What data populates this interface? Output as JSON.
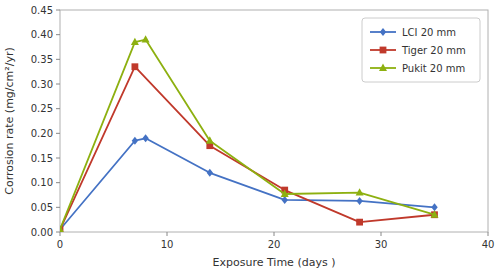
{
  "chart_data": {
    "type": "line",
    "x_label": "Exposure Time (days )",
    "y_label": "Corrosion rate (mg/cm²/yr)",
    "xlim": [
      0,
      40
    ],
    "ylim": [
      0,
      0.45
    ],
    "xticks": [
      0,
      10,
      20,
      30,
      40
    ],
    "yticks": [
      {
        "value": 0,
        "label": "0.00"
      },
      0.05,
      {
        "value": 0.1,
        "label": "0.10"
      },
      0.15,
      {
        "value": 0.2,
        "label": "0.20"
      },
      0.25,
      {
        "value": 0.3,
        "label": "0.30"
      },
      0.35,
      {
        "value": 0.4,
        "label": "0.40"
      },
      0.45
    ],
    "grid": false,
    "legend": "upper right",
    "series": [
      {
        "name": "LCI 20 mm",
        "color": "#4472c4",
        "marker": "diamond",
        "x": [
          0,
          7,
          8,
          14,
          21,
          28,
          35
        ],
        "values": [
          0.005,
          0.185,
          0.19,
          0.12,
          0.065,
          0.063,
          0.05
        ]
      },
      {
        "name": "Tiger 20 mm",
        "color": "#c0392b",
        "marker": "square",
        "x": [
          0,
          7,
          14,
          21,
          28,
          35
        ],
        "values": [
          0.005,
          0.335,
          0.175,
          0.085,
          0.02,
          0.035
        ]
      },
      {
        "name": "Pukit 20 mm",
        "color": "#8db010",
        "marker": "triangle",
        "x": [
          0,
          7,
          8,
          14,
          21,
          28,
          35
        ],
        "values": [
          0.005,
          0.385,
          0.39,
          0.185,
          0.077,
          0.08,
          0.035
        ]
      }
    ]
  }
}
